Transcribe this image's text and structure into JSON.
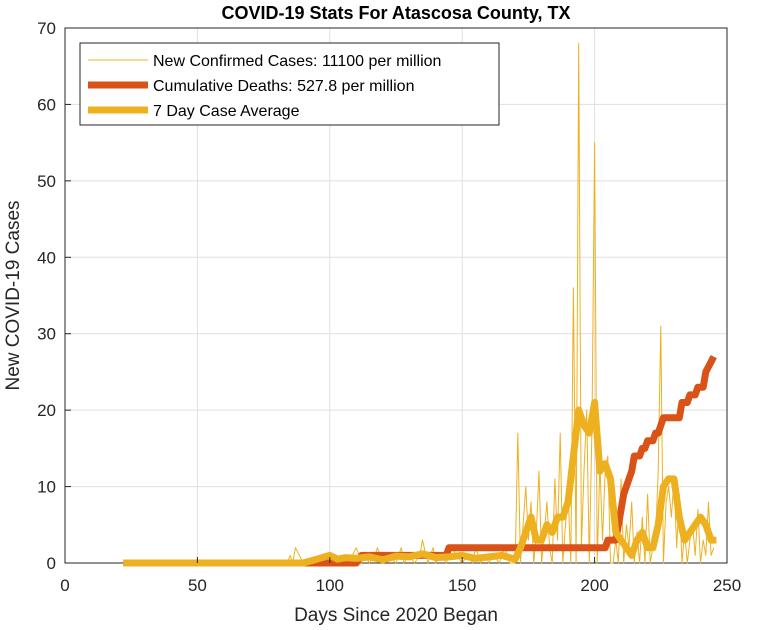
{
  "chart_data": {
    "type": "line",
    "title": "COVID-19 Stats For Atascosa County, TX",
    "xlabel": "Days Since 2020 Began",
    "ylabel": "New COVID-19 Cases",
    "xlim": [
      0,
      250
    ],
    "ylim": [
      0,
      70
    ],
    "xticks": [
      0,
      50,
      100,
      150,
      200,
      250
    ],
    "yticks": [
      0,
      10,
      20,
      30,
      40,
      50,
      60,
      70
    ],
    "grid": true,
    "legend_position": "top-left",
    "series": [
      {
        "name": "New Confirmed Cases: 11100 per million",
        "color": "#EDB120",
        "style": "thin",
        "x": [
          22,
          30,
          40,
          50,
          60,
          70,
          80,
          84,
          85,
          86,
          87,
          90,
          95,
          98,
          100,
          101,
          103,
          105,
          107,
          110,
          112,
          113,
          115,
          117,
          118,
          120,
          122,
          125,
          127,
          128,
          130,
          132,
          134,
          135,
          137,
          139,
          140,
          142,
          144,
          146,
          148,
          150,
          152,
          154,
          155,
          157,
          159,
          160,
          162,
          164,
          166,
          168,
          170,
          171,
          172,
          173,
          174,
          175,
          176,
          177,
          178,
          179,
          180,
          181,
          182,
          183,
          184,
          185,
          186,
          187,
          188,
          189,
          190,
          191,
          192,
          193,
          194,
          195,
          196,
          197,
          198,
          199,
          200,
          201,
          202,
          203,
          204,
          205,
          206,
          207,
          208,
          209,
          210,
          211,
          212,
          213,
          214,
          215,
          216,
          217,
          218,
          219,
          220,
          221,
          222,
          223,
          224,
          225,
          226,
          227,
          228,
          229,
          230,
          231,
          232,
          233,
          234,
          235,
          236,
          237,
          238,
          239,
          240,
          241,
          242,
          243,
          244,
          245
        ],
        "y": [
          0,
          0,
          0,
          0,
          0,
          0,
          0,
          0,
          1,
          0,
          2,
          0,
          0,
          1,
          0,
          1,
          0,
          1,
          0,
          2,
          0,
          1,
          0,
          1,
          2,
          0,
          1,
          0,
          2,
          0,
          1,
          0,
          1,
          3,
          0,
          2,
          0,
          1,
          0,
          2,
          1,
          0,
          1,
          0,
          2,
          0,
          1,
          0,
          1,
          0,
          2,
          0,
          0,
          17,
          0,
          5,
          10,
          3,
          8,
          0,
          4,
          12,
          0,
          4,
          8,
          2,
          0,
          11,
          3,
          17,
          0,
          5,
          9,
          0,
          36,
          0,
          68,
          2,
          12,
          20,
          0,
          18,
          55,
          0,
          13,
          3,
          12,
          14,
          0,
          0,
          3,
          0,
          11,
          0,
          5,
          2,
          8,
          0,
          4,
          0,
          6,
          0,
          9,
          0,
          2,
          3,
          12,
          31,
          0,
          8,
          10,
          6,
          11,
          2,
          9,
          0,
          4,
          0,
          3,
          5,
          1,
          7,
          0,
          3,
          1,
          8,
          1,
          2
        ]
      },
      {
        "name": "Cumulative Deaths: 527.8 per million",
        "color": "#D95319",
        "style": "thick",
        "x": [
          22,
          105,
          106,
          110,
          112,
          143,
          144,
          145,
          204,
          205,
          208,
          209,
          210,
          211,
          213,
          214,
          215,
          217,
          218,
          219,
          220,
          222,
          223,
          224,
          225,
          226,
          231,
          232,
          233,
          235,
          236,
          238,
          239,
          241,
          242,
          245
        ],
        "y": [
          0,
          0,
          0,
          0,
          1,
          1,
          1,
          2,
          2,
          3,
          3,
          5,
          7,
          9,
          11,
          12,
          14,
          14,
          15,
          15,
          16,
          16,
          17,
          17,
          18,
          19,
          19,
          19,
          21,
          21,
          22,
          22,
          23,
          23,
          25,
          27
        ]
      },
      {
        "name": "7 Day Case Average",
        "color": "#EDB120",
        "style": "thick",
        "x": [
          22,
          80,
          90,
          95,
          100,
          103,
          106,
          110,
          115,
          120,
          125,
          130,
          135,
          140,
          145,
          150,
          155,
          160,
          165,
          170,
          172,
          174,
          176,
          178,
          180,
          182,
          184,
          186,
          188,
          190,
          192,
          194,
          196,
          198,
          200,
          202,
          204,
          206,
          208,
          210,
          212,
          214,
          216,
          218,
          220,
          222,
          224,
          226,
          228,
          230,
          232,
          234,
          236,
          238,
          240,
          242,
          244,
          246
        ],
        "y": [
          0,
          0,
          0,
          0.5,
          1,
          0.5,
          0.7,
          0.6,
          0.8,
          0.4,
          0.9,
          0.8,
          1.2,
          0.7,
          0.8,
          1.0,
          0.6,
          0.8,
          1.0,
          0.5,
          2,
          4,
          6,
          3,
          3,
          5,
          4,
          6,
          6,
          8,
          14,
          20,
          18,
          17,
          21,
          12,
          13,
          11,
          4,
          3,
          2,
          1,
          3,
          4,
          2,
          2,
          5,
          10,
          11,
          11,
          6,
          3,
          4,
          5,
          6,
          5,
          3,
          3
        ]
      }
    ]
  }
}
